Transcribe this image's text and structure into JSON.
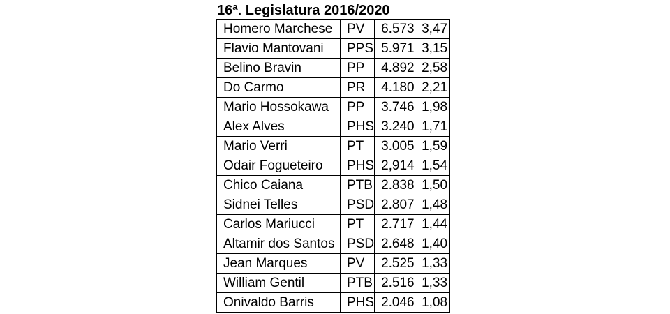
{
  "title": "16ª. Legislatura 2016/2020",
  "rows": [
    {
      "name": "Homero Marchese",
      "party": "PV",
      "votes": "6.573",
      "percent": "3,47"
    },
    {
      "name": "Flavio Mantovani",
      "party": "PPS",
      "votes": "5.971",
      "percent": "3,15"
    },
    {
      "name": "Belino Bravin",
      "party": "PP",
      "votes": "4.892",
      "percent": "2,58"
    },
    {
      "name": "Do Carmo",
      "party": "PR",
      "votes": "4.180",
      "percent": "2,21"
    },
    {
      "name": "Mario Hossokawa",
      "party": "PP",
      "votes": "3.746",
      "percent": "1,98"
    },
    {
      "name": "Alex Alves",
      "party": "PHS",
      "votes": "3.240",
      "percent": "1,71"
    },
    {
      "name": "Mario Verri",
      "party": "PT",
      "votes": "3.005",
      "percent": "1,59"
    },
    {
      "name": "Odair Fogueteiro",
      "party": "PHS",
      "votes": "2,914",
      "percent": "1,54"
    },
    {
      "name": "Chico Caiana",
      "party": "PTB",
      "votes": "2.838",
      "percent": "1,50"
    },
    {
      "name": "Sidnei Telles",
      "party": "PSD",
      "votes": "2.807",
      "percent": "1,48"
    },
    {
      "name": "Carlos Mariucci",
      "party": "PT",
      "votes": "2.717",
      "percent": "1,44"
    },
    {
      "name": "Altamir dos Santos",
      "party": "PSD",
      "votes": "2.648",
      "percent": "1,40"
    },
    {
      "name": "Jean Marques",
      "party": "PV",
      "votes": "2.525",
      "percent": "1,33"
    },
    {
      "name": "William Gentil",
      "party": "PTB",
      "votes": "2.516",
      "percent": "1,33"
    },
    {
      "name": "Onivaldo Barris",
      "party": "PHS",
      "votes": "2.046",
      "percent": "1,08"
    }
  ]
}
